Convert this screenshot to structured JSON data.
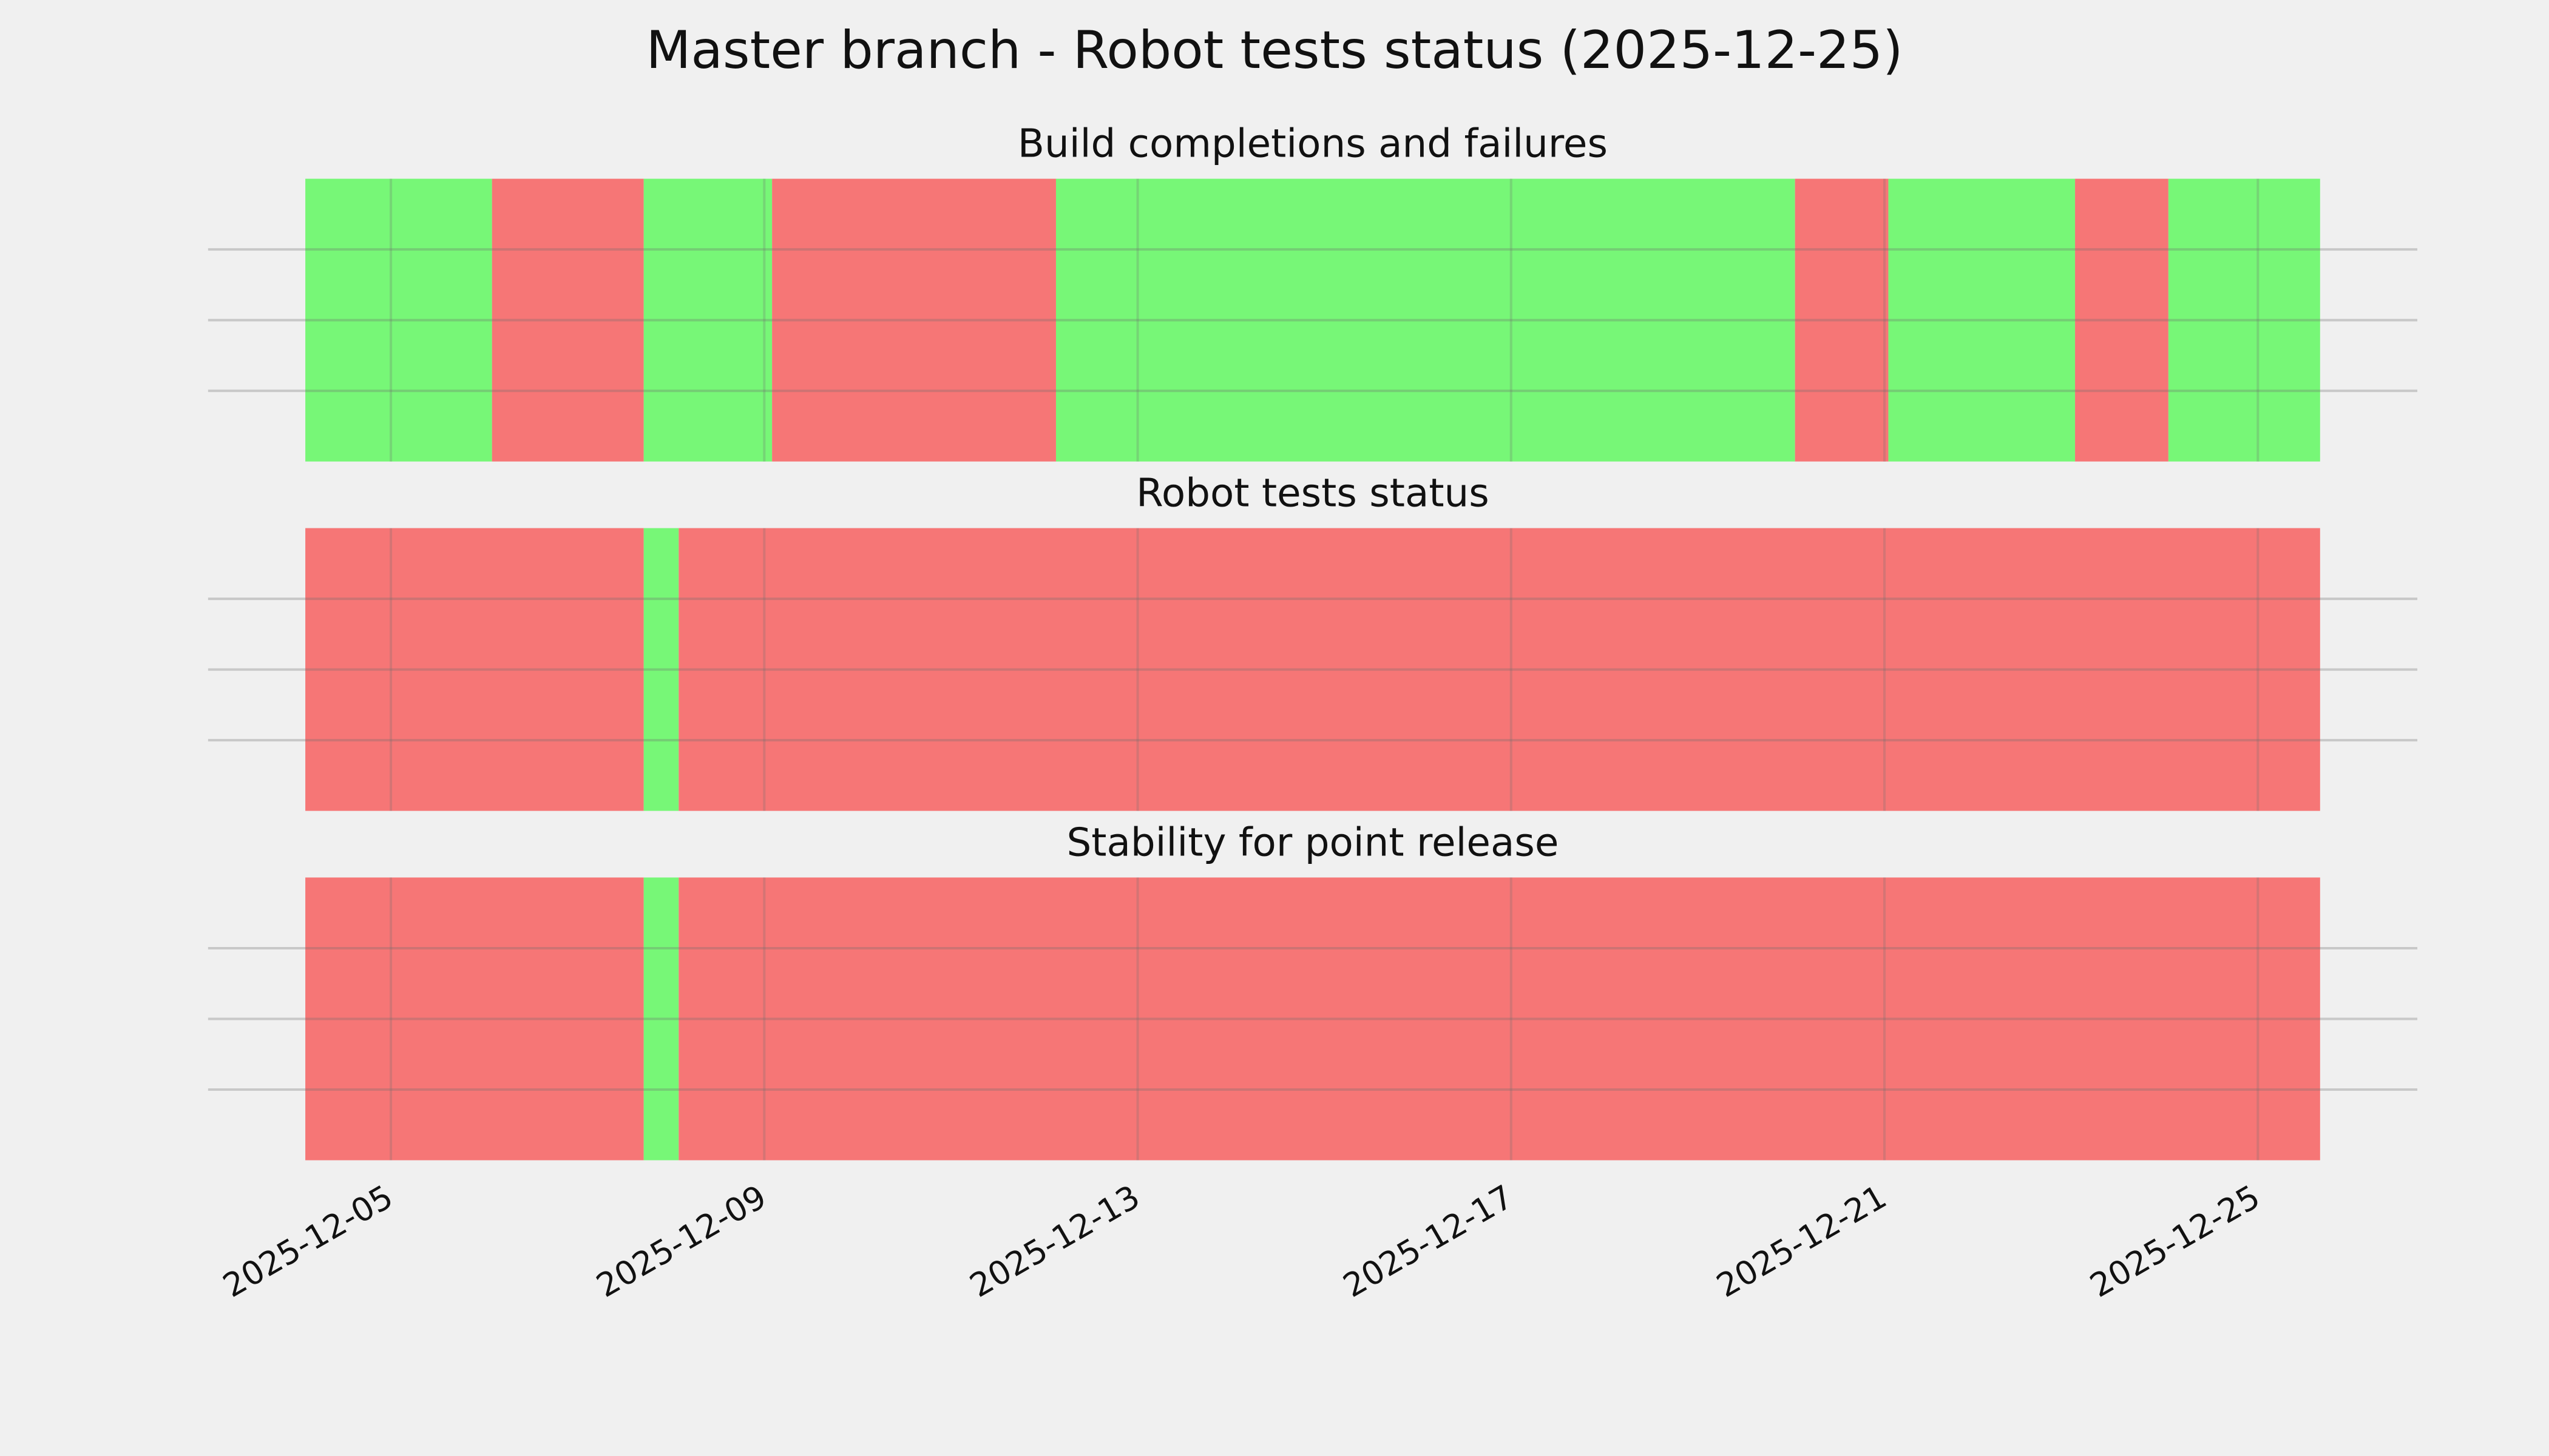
{
  "title": "Master branch - Robot tests status (2025-12-25)",
  "chart_data": [
    {
      "type": "timeline",
      "title": "Build completions and failures",
      "xlim": [
        "2025-12-03T01:00",
        "2025-12-26T17:00"
      ],
      "ylim": [
        0,
        1
      ],
      "yticks": [
        0.25,
        0.5,
        0.75
      ],
      "grid": true,
      "segments": [
        {
          "start": "2025-12-04T02:00",
          "end": "2025-12-06T02:00",
          "color": "#77f777"
        },
        {
          "start": "2025-12-06T02:00",
          "end": "2025-12-07T17:00",
          "color": "#f67676"
        },
        {
          "start": "2025-12-07T17:00",
          "end": "2025-12-09T02:00",
          "color": "#77f777"
        },
        {
          "start": "2025-12-09T02:00",
          "end": "2025-12-12T03:00",
          "color": "#f67676"
        },
        {
          "start": "2025-12-12T03:00",
          "end": "2025-12-20T01:00",
          "color": "#77f777"
        },
        {
          "start": "2025-12-20T01:00",
          "end": "2025-12-21T01:00",
          "color": "#f67676"
        },
        {
          "start": "2025-12-21T01:00",
          "end": "2025-12-23T01:00",
          "color": "#77f777"
        },
        {
          "start": "2025-12-23T01:00",
          "end": "2025-12-24T01:00",
          "color": "#f67676"
        },
        {
          "start": "2025-12-24T01:00",
          "end": "2025-12-25T16:00",
          "color": "#77f777"
        }
      ]
    },
    {
      "type": "timeline",
      "title": "Robot tests status",
      "xlim": [
        "2025-12-03T01:00",
        "2025-12-26T17:00"
      ],
      "ylim": [
        0,
        1
      ],
      "yticks": [
        0.25,
        0.5,
        0.75
      ],
      "grid": true,
      "segments": [
        {
          "start": "2025-12-04T02:00",
          "end": "2025-12-07T17:00",
          "color": "#f67676"
        },
        {
          "start": "2025-12-07T17:00",
          "end": "2025-12-08T02:00",
          "color": "#77f777"
        },
        {
          "start": "2025-12-08T02:00",
          "end": "2025-12-25T16:00",
          "color": "#f67676"
        }
      ]
    },
    {
      "type": "timeline",
      "title": "Stability for point release",
      "xlim": [
        "2025-12-03T01:00",
        "2025-12-26T17:00"
      ],
      "ylim": [
        0,
        1
      ],
      "yticks": [
        0.25,
        0.5,
        0.75
      ],
      "grid": true,
      "xticks": [
        "2025-12-05",
        "2025-12-09",
        "2025-12-13",
        "2025-12-17",
        "2025-12-21",
        "2025-12-25"
      ],
      "segments": [
        {
          "start": "2025-12-04T02:00",
          "end": "2025-12-07T17:00",
          "color": "#f67676"
        },
        {
          "start": "2025-12-07T17:00",
          "end": "2025-12-08T02:00",
          "color": "#77f777"
        },
        {
          "start": "2025-12-08T02:00",
          "end": "2025-12-25T16:00",
          "color": "#f67676"
        }
      ]
    }
  ]
}
